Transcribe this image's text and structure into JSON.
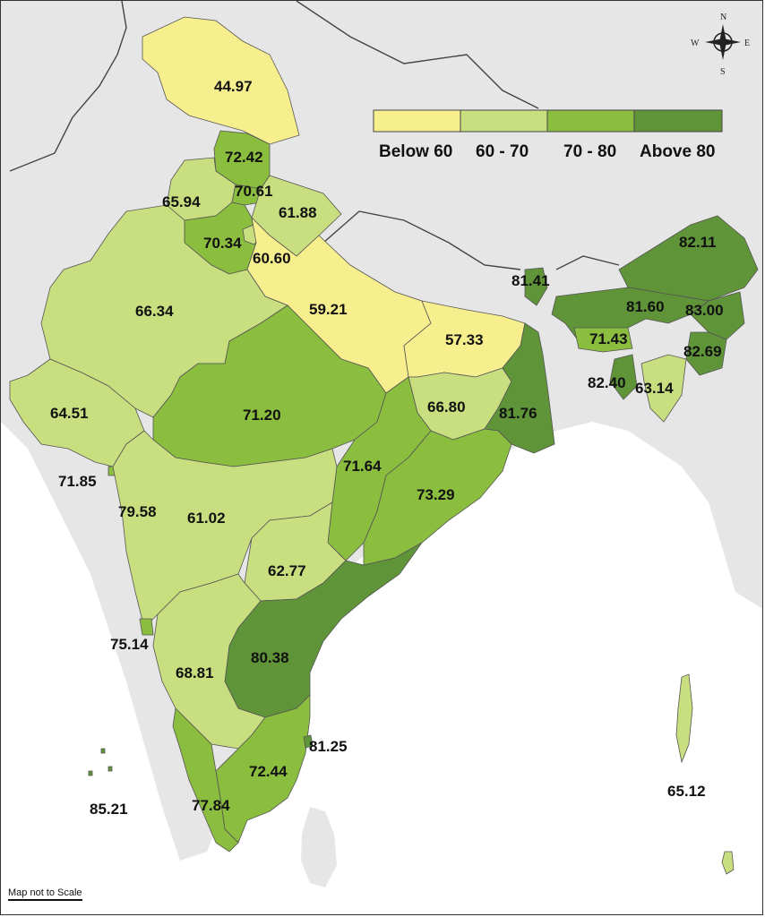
{
  "legend": {
    "bins": [
      {
        "label": "Below 60",
        "color": "#f7ef8e"
      },
      {
        "label": "60 - 70",
        "color": "#c9df7f"
      },
      {
        "label": "70 - 80",
        "color": "#8bbd3f"
      },
      {
        "label": "Above 80",
        "color": "#5f9438"
      }
    ]
  },
  "compass": {
    "n": "N",
    "s": "S",
    "e": "E",
    "w": "W"
  },
  "scale_note": "Map not to Scale",
  "colors": {
    "background_land": "#e6e6e6",
    "sea": "#ffffff",
    "border": "#555555"
  },
  "regions": [
    {
      "id": "jammu-kashmir",
      "value": "44.97",
      "bin": 0
    },
    {
      "id": "himachal-pradesh",
      "value": "72.42",
      "bin": 2
    },
    {
      "id": "punjab",
      "value": "65.94",
      "bin": 1
    },
    {
      "id": "chandigarh",
      "value": "70.61",
      "bin": 2
    },
    {
      "id": "uttarakhand",
      "value": "61.88",
      "bin": 1
    },
    {
      "id": "haryana",
      "value": "70.34",
      "bin": 2
    },
    {
      "id": "delhi",
      "value": "60.60",
      "bin": 1
    },
    {
      "id": "rajasthan",
      "value": "66.34",
      "bin": 1
    },
    {
      "id": "uttar-pradesh",
      "value": "59.21",
      "bin": 0
    },
    {
      "id": "bihar",
      "value": "57.33",
      "bin": 0
    },
    {
      "id": "sikkim",
      "value": "81.41",
      "bin": 3
    },
    {
      "id": "arunachal-pradesh",
      "value": "82.11",
      "bin": 3
    },
    {
      "id": "assam",
      "value": "81.60",
      "bin": 3
    },
    {
      "id": "nagaland",
      "value": "83.00",
      "bin": 3
    },
    {
      "id": "meghalaya",
      "value": "71.43",
      "bin": 2
    },
    {
      "id": "manipur",
      "value": "82.69",
      "bin": 3
    },
    {
      "id": "tripura",
      "value": "82.40",
      "bin": 3
    },
    {
      "id": "mizoram",
      "value": "63.14",
      "bin": 1
    },
    {
      "id": "gujarat",
      "value": "64.51",
      "bin": 1
    },
    {
      "id": "madhya-pradesh",
      "value": "71.20",
      "bin": 2
    },
    {
      "id": "jharkhand",
      "value": "66.80",
      "bin": 1
    },
    {
      "id": "west-bengal",
      "value": "81.76",
      "bin": 3
    },
    {
      "id": "chhattisgarh",
      "value": "71.64",
      "bin": 2
    },
    {
      "id": "odisha",
      "value": "73.29",
      "bin": 2
    },
    {
      "id": "daman-diu",
      "value": "71.85",
      "bin": 2
    },
    {
      "id": "dadra-nagar-haveli",
      "value": "79.58",
      "bin": 2
    },
    {
      "id": "maharashtra",
      "value": "61.02",
      "bin": 1
    },
    {
      "id": "telangana",
      "value": "62.77",
      "bin": 1
    },
    {
      "id": "goa",
      "value": "75.14",
      "bin": 2
    },
    {
      "id": "karnataka",
      "value": "68.81",
      "bin": 1
    },
    {
      "id": "andhra-pradesh",
      "value": "80.38",
      "bin": 3
    },
    {
      "id": "puducherry",
      "value": "81.25",
      "bin": 3
    },
    {
      "id": "tamil-nadu",
      "value": "72.44",
      "bin": 2
    },
    {
      "id": "kerala",
      "value": "77.84",
      "bin": 2
    },
    {
      "id": "lakshadweep",
      "value": "85.21",
      "bin": 3
    },
    {
      "id": "andaman-nicobar",
      "value": "65.12",
      "bin": 1
    }
  ]
}
